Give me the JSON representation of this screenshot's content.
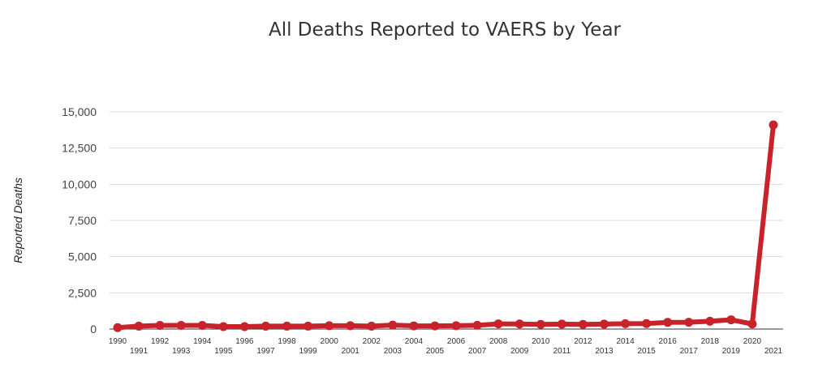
{
  "chart_data": {
    "type": "line",
    "title": "All Deaths Reported to VAERS by Year",
    "xlabel": "",
    "ylabel": "Reported Deaths",
    "ylim": [
      0,
      15000
    ],
    "yticks": [
      "0",
      "2,500",
      "5,000",
      "7,500",
      "10,000",
      "12,500",
      "15,000"
    ],
    "grid": true,
    "legend": "none",
    "color": "#c8232a",
    "categories": [
      "1990",
      "1991",
      "1992",
      "1993",
      "1994",
      "1995",
      "1996",
      "1997",
      "1998",
      "1999",
      "2000",
      "2001",
      "2002",
      "2003",
      "2004",
      "2005",
      "2006",
      "2007",
      "2008",
      "2009",
      "2010",
      "2011",
      "2012",
      "2013",
      "2014",
      "2015",
      "2016",
      "2017",
      "2018",
      "2019",
      "2020",
      "2021"
    ],
    "values": [
      100,
      200,
      250,
      250,
      250,
      170,
      170,
      200,
      200,
      200,
      230,
      230,
      200,
      270,
      220,
      220,
      230,
      260,
      360,
      350,
      320,
      340,
      320,
      340,
      370,
      380,
      460,
      470,
      540,
      640,
      350,
      14100
    ]
  }
}
